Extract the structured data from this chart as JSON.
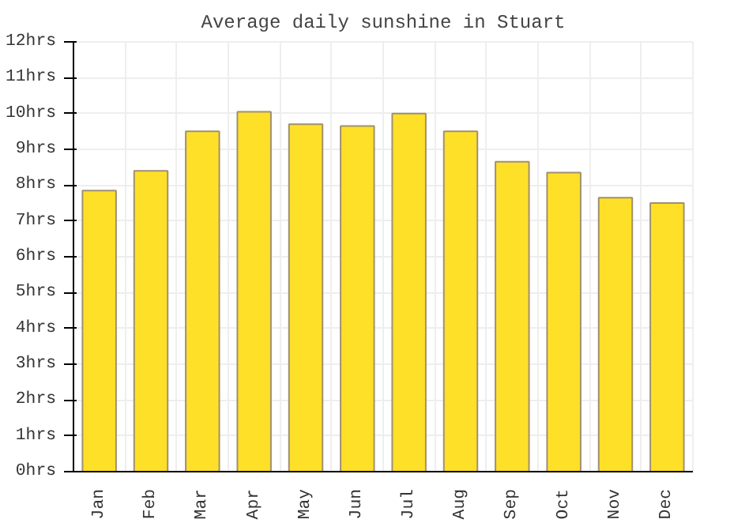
{
  "chart_data": {
    "type": "bar",
    "title": "Average daily sunshine in Stuart",
    "categories": [
      "Jan",
      "Feb",
      "Mar",
      "Apr",
      "May",
      "Jun",
      "Jul",
      "Aug",
      "Sep",
      "Oct",
      "Nov",
      "Dec"
    ],
    "values": [
      7.85,
      8.4,
      9.5,
      10.05,
      9.7,
      9.65,
      10.0,
      9.5,
      8.65,
      8.35,
      7.65,
      7.5
    ],
    "color": "#ffe028",
    "ylim": [
      0,
      12
    ],
    "yticks": [
      {
        "value": 0,
        "label": "0hrs"
      },
      {
        "value": 1,
        "label": "1hrs"
      },
      {
        "value": 2,
        "label": "2hrs"
      },
      {
        "value": 3,
        "label": "3hrs"
      },
      {
        "value": 4,
        "label": "4hrs"
      },
      {
        "value": 5,
        "label": "5hrs"
      },
      {
        "value": 6,
        "label": "6hrs"
      },
      {
        "value": 7,
        "label": "7hrs"
      },
      {
        "value": 8,
        "label": "8hrs"
      },
      {
        "value": 9,
        "label": "9hrs"
      },
      {
        "value": 10,
        "label": "10hrs"
      },
      {
        "value": 11,
        "label": "11hrs"
      },
      {
        "value": 12,
        "label": "12hrs"
      }
    ],
    "grid": true
  }
}
